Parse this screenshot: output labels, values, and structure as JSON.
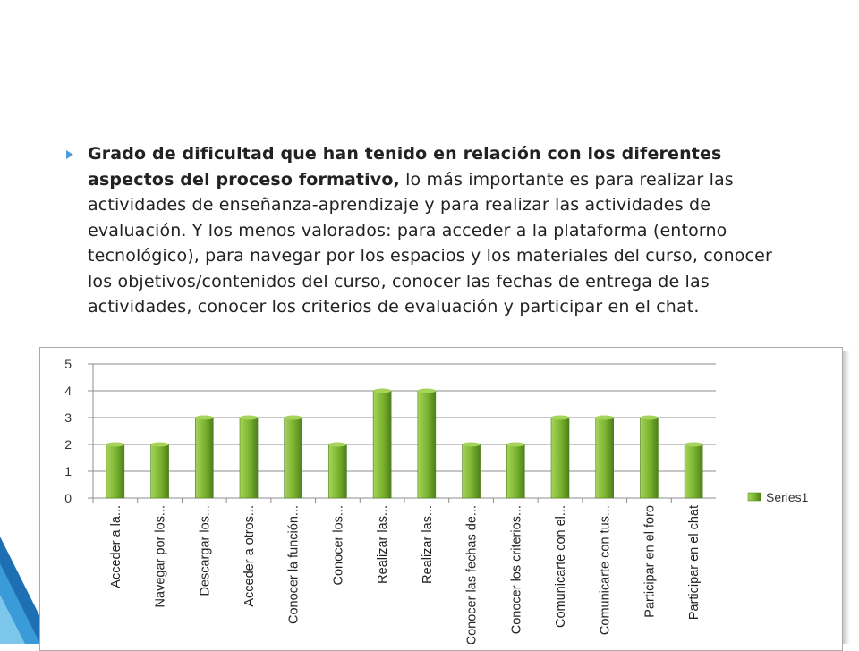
{
  "paragraph": {
    "bold": "Grado de dificultad que han tenido en relación con los diferentes aspectos del proceso formativo,",
    "rest": " lo más importante es para realizar las actividades de enseñanza-aprendizaje y para realizar las actividades de evaluación. Y los menos valorados: para acceder a la plataforma (entorno tecnológico), para navegar por los espacios y los materiales del curso, conocer los objetivos/contenidos del curso, conocer las fechas de entrega de las actividades, conocer los criterios de evaluación y participar en el chat."
  },
  "colors": {
    "bar_light": "#a6d45a",
    "bar_mid": "#79b22f",
    "bar_dark": "#4e7f1a",
    "bullet": "#4b9bd6",
    "grid": "#8c8c8c"
  },
  "chart_data": {
    "type": "bar",
    "categories": [
      "Acceder a la...",
      "Navegar por los...",
      "Descargar los...",
      "Acceder a otros...",
      "Conocer la función...",
      "Conocer los...",
      "Realizar las...",
      "Realizar las...",
      "Conocer las fechas de...",
      "Conocer los criterios...",
      "Comunicarte con el...",
      "Comunicarte con tus...",
      "Participar en el foro",
      "Participar en el chat"
    ],
    "series": [
      {
        "name": "Series1",
        "values": [
          2,
          2,
          3,
          3,
          3,
          2,
          4,
          4,
          2,
          2,
          3,
          3,
          3,
          2
        ]
      }
    ],
    "ylim": [
      0,
      5
    ],
    "yticks": [
      "0",
      "1",
      "2",
      "3",
      "4",
      "5"
    ],
    "grid": true,
    "legend": "right",
    "title": "",
    "xlabel": "",
    "ylabel": ""
  }
}
